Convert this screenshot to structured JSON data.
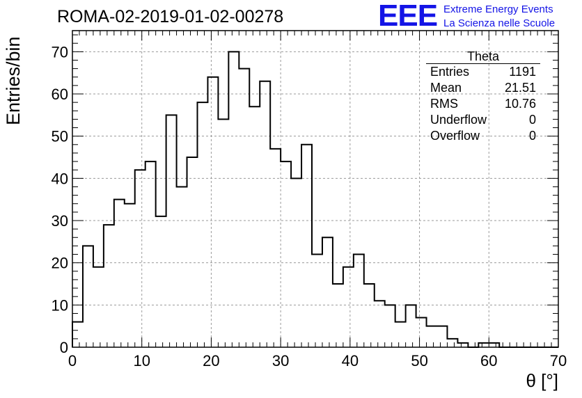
{
  "chart_data": {
    "type": "bar",
    "title": "ROMA-02-2019-01-02-00278",
    "xlabel": "θ [°]",
    "ylabel": "Entries/bin",
    "xlim": [
      0,
      70
    ],
    "ylim": [
      0,
      75
    ],
    "xticks": [
      0,
      10,
      20,
      30,
      40,
      50,
      60,
      70
    ],
    "yticks": [
      0,
      10,
      20,
      30,
      40,
      50,
      60,
      70
    ],
    "grid": true,
    "bin_width": 1.5,
    "bin_edges_start": 0,
    "values": [
      6,
      24,
      19,
      29,
      35,
      34,
      42,
      44,
      31,
      55,
      38,
      45,
      58,
      64,
      54,
      70,
      66,
      57,
      63,
      47,
      44,
      40,
      48,
      22,
      26,
      15,
      19,
      22,
      15,
      11,
      10,
      6,
      10,
      7,
      5,
      5,
      2,
      1,
      0,
      1,
      1,
      0,
      0,
      0,
      0,
      0,
      0
    ],
    "stats": {
      "title": "Theta",
      "rows": [
        {
          "label": "Entries",
          "value": "1191"
        },
        {
          "label": "Mean",
          "value": "21.51"
        },
        {
          "label": "RMS",
          "value": "10.76"
        },
        {
          "label": "Underflow",
          "value": "0"
        },
        {
          "label": "Overflow",
          "value": "0"
        }
      ]
    }
  },
  "logo": {
    "mark": "EEE",
    "line1": "Extreme Energy Events",
    "line2": "La Scienza nelle Scuole",
    "color": "#1414e6"
  }
}
